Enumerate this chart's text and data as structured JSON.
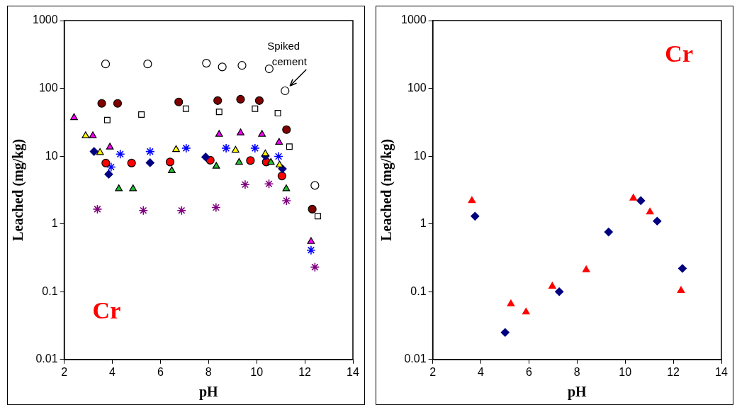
{
  "chart_data": [
    {
      "type": "scatter",
      "xlabel": "pH",
      "ylabel": "Leached (mg/kg)",
      "log": "y",
      "grid": false,
      "xlim": [
        2,
        14
      ],
      "xticks": [
        2,
        4,
        6,
        8,
        10,
        12,
        14
      ],
      "ylim": [
        0.01,
        1000
      ],
      "yticks": [
        0.01,
        0.1,
        1,
        10,
        100,
        1000
      ],
      "annotations": [
        {
          "text": "Spiked cement",
          "x": 11.18,
          "y": 92
        },
        "Cr"
      ],
      "series": [
        {
          "color": "#ffffff",
          "marker": "circle",
          "x": [
            3.72,
            5.47,
            7.91,
            8.57,
            9.39,
            10.52,
            11.18,
            12.42
          ],
          "values": [
            229,
            229,
            235,
            207,
            218,
            194,
            92,
            3.7
          ]
        },
        {
          "color": "#800000",
          "marker": "circle",
          "x": [
            3.56,
            4.22,
            6.76,
            8.38,
            9.33,
            10.11,
            11.24,
            12.31
          ],
          "values": [
            60,
            60,
            63,
            66,
            69,
            66,
            24.6,
            1.65
          ]
        },
        {
          "color": "#ffffff",
          "marker": "square",
          "x": [
            3.79,
            5.21,
            7.06,
            8.44,
            9.93,
            10.88,
            11.36,
            12.54
          ],
          "values": [
            34,
            41,
            50,
            45,
            50,
            43,
            13.8,
            1.3
          ]
        },
        {
          "color": "#ff00ff",
          "marker": "triangle",
          "x": [
            2.41,
            3.19,
            3.9,
            8.44,
            9.33,
            10.22,
            10.93,
            12.26
          ],
          "values": [
            37,
            20,
            13.6,
            21,
            22,
            21,
            16,
            0.55
          ]
        },
        {
          "color": "#ffff00",
          "marker": "triangle",
          "x": [
            2.89,
            3.49,
            6.65,
            9.12,
            10.36,
            10.95
          ],
          "values": [
            20,
            11.3,
            12.5,
            12.2,
            10.8,
            7.4
          ]
        },
        {
          "color": "#22bb33",
          "marker": "triangle",
          "x": [
            4.27,
            4.86,
            6.47,
            8.32,
            9.27,
            10.59,
            11.23
          ],
          "values": [
            3.3,
            3.3,
            6.1,
            7.1,
            8.1,
            8.1,
            3.3
          ]
        },
        {
          "color": "#000080",
          "marker": "diamond",
          "x": [
            3.24,
            3.85,
            5.57,
            7.88,
            10.36,
            11.07
          ],
          "values": [
            11.7,
            5.4,
            8,
            9.7,
            10,
            6.5
          ]
        },
        {
          "color": "#ff0000",
          "marker": "circle",
          "x": [
            3.73,
            4.8,
            6.4,
            8.07,
            9.74,
            10.4,
            11.05
          ],
          "values": [
            7.9,
            7.9,
            8.2,
            8.7,
            8.6,
            8.2,
            5.1
          ]
        },
        {
          "color": "#0000ff",
          "marker": "cross",
          "x": [
            4.33,
            3.95,
            5.57,
            7.07,
            8.73,
            9.93,
            10.91,
            12.26
          ],
          "values": [
            10.7,
            6.9,
            11.7,
            13.1,
            13.1,
            13.1,
            9.9,
            0.41
          ]
        },
        {
          "color": "#800080",
          "marker": "cross",
          "x": [
            3.38,
            5.29,
            6.88,
            8.31,
            9.52,
            10.51,
            11.24,
            12.42
          ],
          "values": [
            1.65,
            1.58,
            1.58,
            1.75,
            3.8,
            3.9,
            2.2,
            0.23
          ]
        }
      ]
    },
    {
      "type": "scatter",
      "xlabel": "pH",
      "ylabel": "Leached (mg/kg)",
      "log": "y",
      "grid": false,
      "xlim": [
        2,
        14
      ],
      "xticks": [
        2,
        4,
        6,
        8,
        10,
        12,
        14
      ],
      "ylim": [
        0.01,
        1000
      ],
      "yticks": [
        0.01,
        0.1,
        1,
        10,
        100,
        1000
      ],
      "annotations": [
        "Cr"
      ],
      "series": [
        {
          "color": "#ff0000",
          "marker": "triangle",
          "x": [
            3.63,
            5.25,
            5.88,
            6.97,
            8.38,
            10.34,
            11.03,
            12.32
          ],
          "values": [
            2.2,
            0.066,
            0.05,
            0.12,
            0.21,
            2.4,
            1.5,
            0.104
          ]
        },
        {
          "color": "#000080",
          "marker": "diamond",
          "x": [
            3.76,
            5.01,
            7.26,
            9.31,
            10.65,
            11.33,
            12.38
          ],
          "values": [
            1.3,
            0.025,
            0.1,
            0.76,
            2.2,
            1.1,
            0.22
          ]
        }
      ]
    }
  ]
}
